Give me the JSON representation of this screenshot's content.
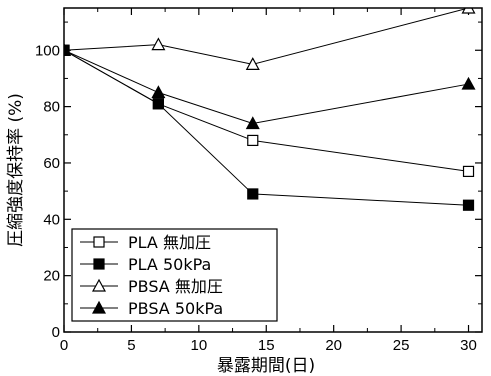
{
  "chart_data": {
    "type": "line",
    "xlabel": "暴露期間(日)",
    "ylabel": "圧縮強度保持率 (%)",
    "xlim": [
      0,
      31
    ],
    "ylim": [
      0,
      115
    ],
    "xticks": [
      "0",
      "5",
      "10",
      "15",
      "20",
      "25",
      "30"
    ],
    "yticks": [
      "0",
      "20",
      "40",
      "60",
      "80",
      "100"
    ],
    "grid": false,
    "legend_position": "bottom-left",
    "series": [
      {
        "name": "PLA 無加圧",
        "marker": "square-open",
        "x": [
          0,
          7,
          14,
          30
        ],
        "y": [
          100,
          81,
          68,
          57
        ]
      },
      {
        "name": "PLA 50kPa",
        "marker": "square-filled",
        "x": [
          0,
          7,
          14,
          30
        ],
        "y": [
          100,
          81,
          49,
          45
        ]
      },
      {
        "name": "PBSA 無加圧",
        "marker": "triangle-open",
        "x": [
          0,
          7,
          14,
          30
        ],
        "y": [
          100,
          102,
          95,
          115
        ]
      },
      {
        "name": "PBSA 50kPa",
        "marker": "triangle-filled",
        "x": [
          0,
          7,
          14,
          30
        ],
        "y": [
          100,
          85,
          74,
          88
        ]
      }
    ]
  }
}
